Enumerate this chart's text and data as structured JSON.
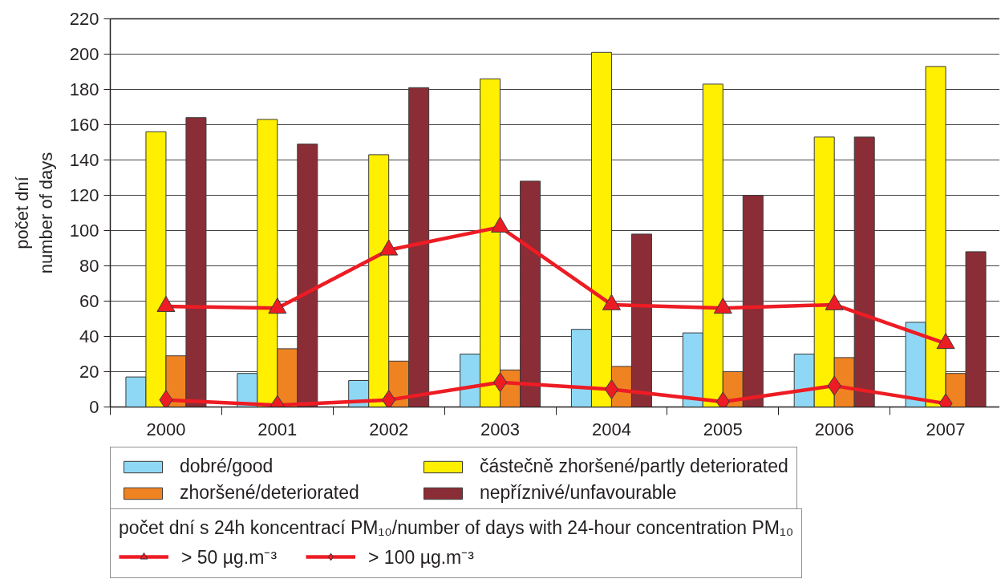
{
  "chart_data": {
    "type": "bar",
    "ylabel": "počet dní\nnumber of days",
    "categories": [
      "2000",
      "2001",
      "2002",
      "2003",
      "2004",
      "2005",
      "2006",
      "2007"
    ],
    "series": [
      {
        "name": "dobré/good",
        "color": "#8fd8f5",
        "values": [
          17,
          19,
          15,
          30,
          44,
          42,
          30,
          48
        ]
      },
      {
        "name": "částečně zhoršené/partly deteriorated",
        "color": "#ffef00",
        "values": [
          156,
          163,
          143,
          186,
          201,
          183,
          153,
          193
        ]
      },
      {
        "name": "zhoršené/deteriorated",
        "color": "#f08321",
        "values": [
          29,
          33,
          26,
          21,
          23,
          20,
          28,
          19
        ]
      },
      {
        "name": "nepříznivé/unfavourable",
        "color": "#8b2d36",
        "values": [
          164,
          149,
          181,
          128,
          98,
          120,
          153,
          88
        ]
      },
      {
        "name": "> 50 µg.m⁻³",
        "type": "line",
        "color": "#ed1c24",
        "marker": "triangle",
        "values": [
          57,
          56,
          89,
          102,
          58,
          56,
          58,
          36
        ]
      },
      {
        "name": "> 100 µg.m⁻³",
        "type": "line",
        "color": "#ed1c24",
        "marker": "diamond",
        "values": [
          4,
          1,
          4,
          14,
          10,
          3,
          12,
          2
        ]
      }
    ],
    "legend_title": "počet dní s 24h koncentrací PM₁₀/number of days with 24-hour concentration PM₁₀",
    "ylim": [
      0,
      220
    ],
    "yticks": [
      0,
      20,
      40,
      60,
      80,
      100,
      120,
      140,
      160,
      180,
      200,
      220
    ],
    "grid": "y",
    "legend": "bottom"
  }
}
